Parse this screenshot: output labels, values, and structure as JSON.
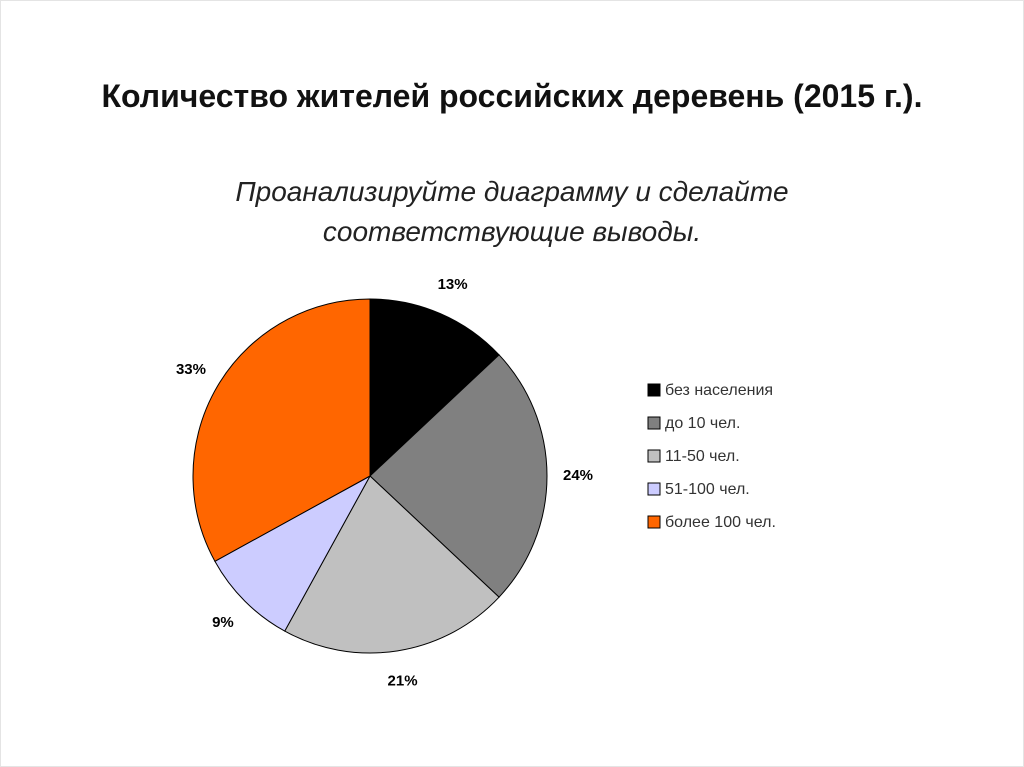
{
  "chart_data": {
    "type": "pie",
    "title": "Количество жителей российских деревень (2015 г.).",
    "subtitle": [
      "Проанализируйте диаграмму и сделайте",
      "соответствующие выводы."
    ],
    "categories": [
      "без населения",
      "до 10 чел.",
      "11-50 чел.",
      "51-100 чел.",
      "более 100 чел."
    ],
    "values": [
      13,
      24,
      21,
      9,
      33
    ],
    "value_labels": [
      "13%",
      "24%",
      "21%",
      "9%",
      "33%"
    ],
    "colors": [
      "#000000",
      "#808080",
      "#c0c0c0",
      "#ccccff",
      "#ff6600"
    ],
    "legend": "right"
  }
}
